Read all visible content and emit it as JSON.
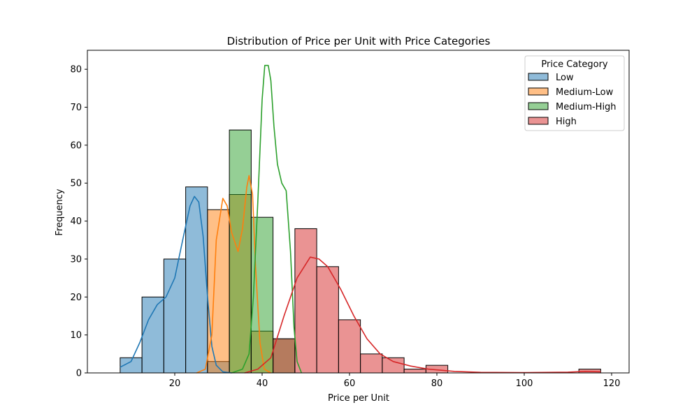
{
  "chart_data": {
    "type": "bar",
    "title": "Distribution of Price per Unit with Price Categories",
    "xlabel": "Price per Unit",
    "ylabel": "Frequency",
    "xlim": [
      0,
      124
    ],
    "ylim": [
      0,
      85
    ],
    "xticks": [
      20,
      40,
      60,
      80,
      100,
      120
    ],
    "yticks": [
      0,
      10,
      20,
      30,
      40,
      50,
      60,
      70,
      80
    ],
    "grid": false,
    "legend": {
      "title": "Price Category",
      "placement": "top-right"
    },
    "bin_edges": [
      7.5,
      12.5,
      17.5,
      22.5,
      27.5,
      32.5,
      37.5,
      42.5,
      47.5,
      52.5,
      57.5,
      62.5,
      67.5,
      72.5,
      77.5,
      82.5,
      87.5,
      92.5,
      97.5,
      102.5,
      107.5,
      112.5,
      117.5
    ],
    "series": [
      {
        "name": "Low",
        "color": "#1f77b4",
        "values": [
          4,
          20,
          30,
          49,
          3,
          0,
          0,
          0,
          0,
          0,
          0,
          0,
          0,
          0,
          0,
          0,
          0,
          0,
          0,
          0,
          0,
          0
        ],
        "kde": [
          [
            7.5,
            1.5
          ],
          [
            10,
            3
          ],
          [
            12,
            8
          ],
          [
            14,
            14
          ],
          [
            16,
            18
          ],
          [
            18,
            20
          ],
          [
            20,
            25
          ],
          [
            22,
            36
          ],
          [
            23.5,
            44
          ],
          [
            24.5,
            46.5
          ],
          [
            25.5,
            45
          ],
          [
            26.5,
            36
          ],
          [
            27.5,
            20
          ],
          [
            28.5,
            7
          ],
          [
            29.5,
            2
          ],
          [
            31,
            0.3
          ],
          [
            33,
            0
          ]
        ]
      },
      {
        "name": "Medium-Low",
        "color": "#ff7f0e",
        "values": [
          0,
          0,
          0,
          0,
          43,
          47,
          11,
          0,
          0,
          0,
          0,
          0,
          0,
          0,
          0,
          0,
          0,
          0,
          0,
          0,
          0,
          0
        ],
        "kde": [
          [
            25,
            0
          ],
          [
            27,
            1
          ],
          [
            28.5,
            10
          ],
          [
            29.5,
            35
          ],
          [
            31,
            46
          ],
          [
            32,
            44
          ],
          [
            33,
            37
          ],
          [
            34.5,
            32
          ],
          [
            35.5,
            38
          ],
          [
            36.5,
            49
          ],
          [
            37,
            52
          ],
          [
            37.8,
            47
          ],
          [
            38.5,
            28
          ],
          [
            39.5,
            8
          ],
          [
            40.5,
            1
          ],
          [
            42,
            0
          ]
        ]
      },
      {
        "name": "Medium-High",
        "color": "#2ca02c",
        "values": [
          0,
          0,
          0,
          0,
          0,
          64,
          41,
          9,
          0,
          0,
          0,
          0,
          0,
          0,
          0,
          0,
          0,
          0,
          0,
          0,
          0,
          0
        ],
        "kde": [
          [
            33,
            0
          ],
          [
            35.5,
            1
          ],
          [
            37,
            5
          ],
          [
            38,
            20
          ],
          [
            39,
            45
          ],
          [
            40,
            72
          ],
          [
            40.6,
            81
          ],
          [
            41.4,
            81
          ],
          [
            42,
            77
          ],
          [
            42.7,
            65
          ],
          [
            43.5,
            55
          ],
          [
            44.5,
            50
          ],
          [
            45.5,
            48
          ],
          [
            46.5,
            32
          ],
          [
            47.3,
            12
          ],
          [
            48,
            3
          ],
          [
            49,
            0
          ]
        ]
      },
      {
        "name": "High",
        "color": "#d62728",
        "values": [
          0,
          0,
          0,
          0,
          0,
          0,
          0,
          9,
          38,
          28,
          14,
          5,
          4,
          1,
          2,
          0,
          0,
          0,
          0,
          0,
          0,
          1
        ],
        "kde": [
          [
            36,
            0
          ],
          [
            39,
            1
          ],
          [
            42,
            4
          ],
          [
            45,
            15
          ],
          [
            48,
            25
          ],
          [
            51,
            30.5
          ],
          [
            53,
            30
          ],
          [
            55,
            28
          ],
          [
            58,
            22
          ],
          [
            61,
            15
          ],
          [
            64,
            9
          ],
          [
            67,
            5
          ],
          [
            70,
            3
          ],
          [
            74,
            1.8
          ],
          [
            78,
            1
          ],
          [
            84,
            0.4
          ],
          [
            90,
            0.15
          ],
          [
            100,
            0.1
          ],
          [
            110,
            0.2
          ],
          [
            114,
            0.4
          ],
          [
            117.5,
            0.3
          ]
        ]
      }
    ]
  }
}
